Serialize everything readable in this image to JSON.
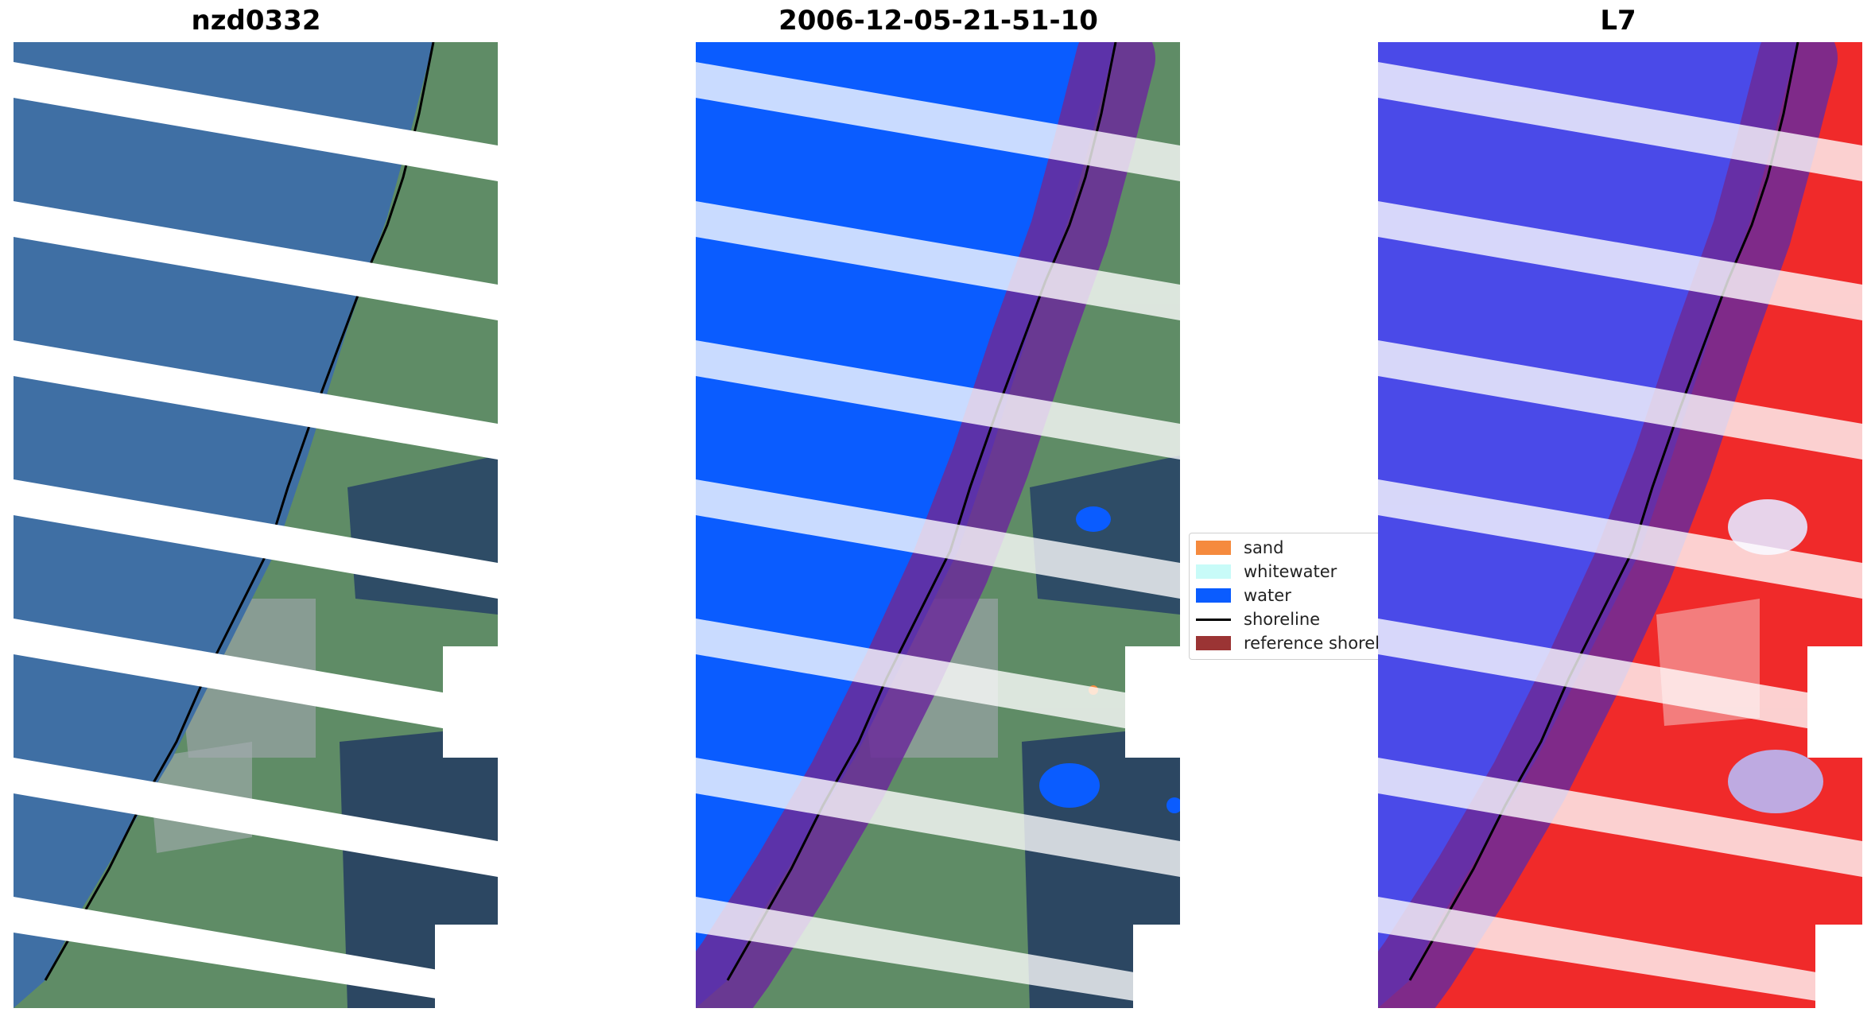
{
  "panels": [
    {
      "title": "nzd0332"
    },
    {
      "title": "2006-12-05-21-51-10"
    },
    {
      "title": "L7"
    }
  ],
  "legend": {
    "items": [
      {
        "label": "sand",
        "kind": "patch",
        "color": "#f58a3e"
      },
      {
        "label": "whitewater",
        "kind": "patch",
        "color": "#c8fbf8"
      },
      {
        "label": "water",
        "kind": "patch",
        "color": "#0a5cff"
      },
      {
        "label": "shoreline",
        "kind": "line",
        "color": "#000000"
      },
      {
        "label": "reference shoreline",
        "kind": "patch",
        "color": "#9b3434"
      }
    ]
  },
  "colors": {
    "ocean_rgb": "#3f6fa4",
    "land_rgb": "#5a8a62",
    "land_dark": "#2f4f6a",
    "classified_water": "#0a5cff",
    "buffer": "#6b2a9a",
    "buffer_highlight": "#c0608e",
    "index_water": "#4a4ae8",
    "index_land": "#f03030"
  }
}
